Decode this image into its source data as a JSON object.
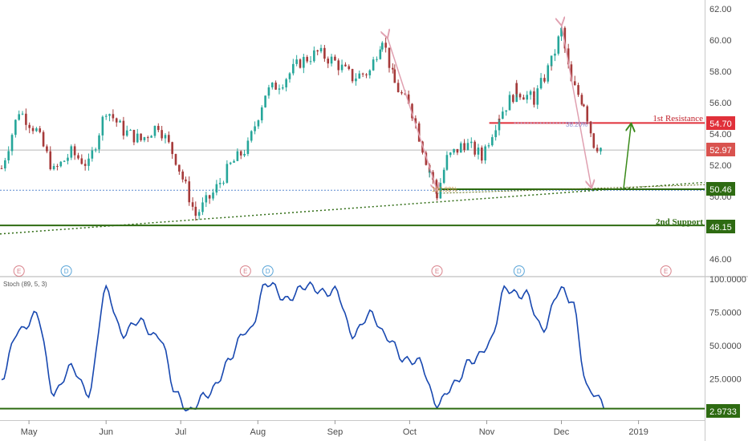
{
  "chart_data": [
    {
      "type": "candlestick",
      "title": "",
      "price_axis": {
        "range": [
          45,
          62.5
        ],
        "ticks": [
          "62.00",
          "60.00",
          "58.00",
          "56.00",
          "54.00",
          "52.00",
          "50.00",
          "48.00",
          "46.00"
        ]
      },
      "time_axis": {
        "labels": [
          "May",
          "Jun",
          "Jul",
          "Aug",
          "Sep",
          "Oct",
          "Nov",
          "Dec",
          "2019"
        ]
      },
      "approx_close_path": [
        {
          "date": "Apr 20",
          "close": 51.8
        },
        {
          "date": "Apr 27",
          "close": 55.5
        },
        {
          "date": "May 4",
          "close": 54.2
        },
        {
          "date": "May 11",
          "close": 51.6
        },
        {
          "date": "May 18",
          "close": 52.8
        },
        {
          "date": "May 25",
          "close": 52.0
        },
        {
          "date": "Jun 1",
          "close": 55.6
        },
        {
          "date": "Jun 8",
          "close": 54.2
        },
        {
          "date": "Jun 15",
          "close": 53.6
        },
        {
          "date": "Jun 22",
          "close": 54.6
        },
        {
          "date": "Jun 29",
          "close": 52.4
        },
        {
          "date": "Jul 3",
          "close": 50.6
        },
        {
          "date": "Jul 7",
          "close": 48.8
        },
        {
          "date": "Jul 14",
          "close": 50.2
        },
        {
          "date": "Jul 21",
          "close": 52.0
        },
        {
          "date": "Jul 28",
          "close": 53.2
        },
        {
          "date": "Aug 4",
          "close": 56.6
        },
        {
          "date": "Aug 11",
          "close": 57.4
        },
        {
          "date": "Aug 18",
          "close": 58.6
        },
        {
          "date": "Aug 25",
          "close": 59.2
        },
        {
          "date": "Sep 1",
          "close": 58.6
        },
        {
          "date": "Sep 8",
          "close": 57.6
        },
        {
          "date": "Sep 15",
          "close": 58.0
        },
        {
          "date": "Sep 20",
          "close": 60.2
        },
        {
          "date": "Sep 25",
          "close": 57.2
        },
        {
          "date": "Oct 2",
          "close": 55.4
        },
        {
          "date": "Oct 9",
          "close": 51.6
        },
        {
          "date": "Oct 12",
          "close": 50.1
        },
        {
          "date": "Oct 16",
          "close": 52.4
        },
        {
          "date": "Oct 23",
          "close": 53.4
        },
        {
          "date": "Oct 30",
          "close": 52.6
        },
        {
          "date": "Nov 6",
          "close": 55.2
        },
        {
          "date": "Nov 13",
          "close": 56.8
        },
        {
          "date": "Nov 20",
          "close": 56.2
        },
        {
          "date": "Nov 27",
          "close": 58.6
        },
        {
          "date": "Dec 1",
          "close": 60.6
        },
        {
          "date": "Dec 5",
          "close": 57.2
        },
        {
          "date": "Dec 10",
          "close": 56.0
        },
        {
          "date": "Dec 14",
          "close": 53.4
        },
        {
          "date": "Dec 18",
          "close": 52.97
        }
      ],
      "annotations": {
        "resistance": {
          "label": "1st Resistance",
          "price": "54.70",
          "price_value": 54.7
        },
        "last_price": {
          "price": "52.97",
          "price_value": 52.97
        },
        "support_line": {
          "price": "50.46",
          "price_value": 50.46
        },
        "second_support": {
          "label": "2nd Support",
          "price": "48.15",
          "price_value": 48.15
        },
        "dotted_blue_level": 50.4,
        "fib_level_labels": [
          "100.00%",
          "38.20%"
        ]
      },
      "event_markers": [
        {
          "letter": "E",
          "date": "Apr 27",
          "color": "#d9838c"
        },
        {
          "letter": "D",
          "date": "May 16",
          "color": "#5aa5d8"
        },
        {
          "letter": "E",
          "date": "Jul 27",
          "color": "#d9838c"
        },
        {
          "letter": "D",
          "date": "Aug 5",
          "color": "#5aa5d8"
        },
        {
          "letter": "E",
          "date": "Oct 12",
          "color": "#d9838c"
        },
        {
          "letter": "D",
          "date": "Nov 14",
          "color": "#5aa5d8"
        },
        {
          "letter": "E",
          "date": "Jan 12",
          "color": "#d9838c"
        }
      ],
      "colors": {
        "up": "#26a69a",
        "down": "#a63a3a",
        "resistance": "#e0303a",
        "support": "#2e6b12",
        "arrow_pink": "#e0a0b0",
        "arrow_green": "#3a8a1a"
      }
    },
    {
      "type": "line",
      "title": "Stoch (89, 5, 3)",
      "y_axis": {
        "range": [
          0,
          100
        ],
        "ticks": [
          "100.0000",
          "75.0000",
          "50.0000",
          "25.0000"
        ]
      },
      "series": [
        {
          "name": "",
          "color": "#1848b0",
          "points": [
            {
              "x": "Apr 20",
              "y": 22
            },
            {
              "x": "Apr 27",
              "y": 65
            },
            {
              "x": "May 4",
              "y": 70
            },
            {
              "x": "May 11",
              "y": 18
            },
            {
              "x": "May 18",
              "y": 30
            },
            {
              "x": "May 25",
              "y": 18
            },
            {
              "x": "Jun 1",
              "y": 88
            },
            {
              "x": "Jun 8",
              "y": 62
            },
            {
              "x": "Jun 15",
              "y": 65
            },
            {
              "x": "Jun 22",
              "y": 60
            },
            {
              "x": "Jun 29",
              "y": 12
            },
            {
              "x": "Jul 5",
              "y": 4
            },
            {
              "x": "Jul 10",
              "y": 8
            },
            {
              "x": "Jul 21",
              "y": 40
            },
            {
              "x": "Jul 28",
              "y": 62
            },
            {
              "x": "Aug 4",
              "y": 94
            },
            {
              "x": "Aug 11",
              "y": 88
            },
            {
              "x": "Aug 18",
              "y": 90
            },
            {
              "x": "Aug 25",
              "y": 95
            },
            {
              "x": "Sep 1",
              "y": 88
            },
            {
              "x": "Sep 8",
              "y": 62
            },
            {
              "x": "Sep 15",
              "y": 70
            },
            {
              "x": "Sep 22",
              "y": 60
            },
            {
              "x": "Sep 29",
              "y": 35
            },
            {
              "x": "Oct 5",
              "y": 42
            },
            {
              "x": "Oct 12",
              "y": 2
            },
            {
              "x": "Oct 19",
              "y": 25
            },
            {
              "x": "Oct 26",
              "y": 35
            },
            {
              "x": "Nov 2",
              "y": 55
            },
            {
              "x": "Nov 9",
              "y": 90
            },
            {
              "x": "Nov 16",
              "y": 92
            },
            {
              "x": "Nov 23",
              "y": 60
            },
            {
              "x": "Nov 30",
              "y": 94
            },
            {
              "x": "Dec 5",
              "y": 80
            },
            {
              "x": "Dec 12",
              "y": 20
            },
            {
              "x": "Dec 18",
              "y": 2.9733
            }
          ]
        }
      ],
      "annotations": {
        "support": {
          "price": "2.9733",
          "price_value": 2.9733
        }
      }
    }
  ]
}
